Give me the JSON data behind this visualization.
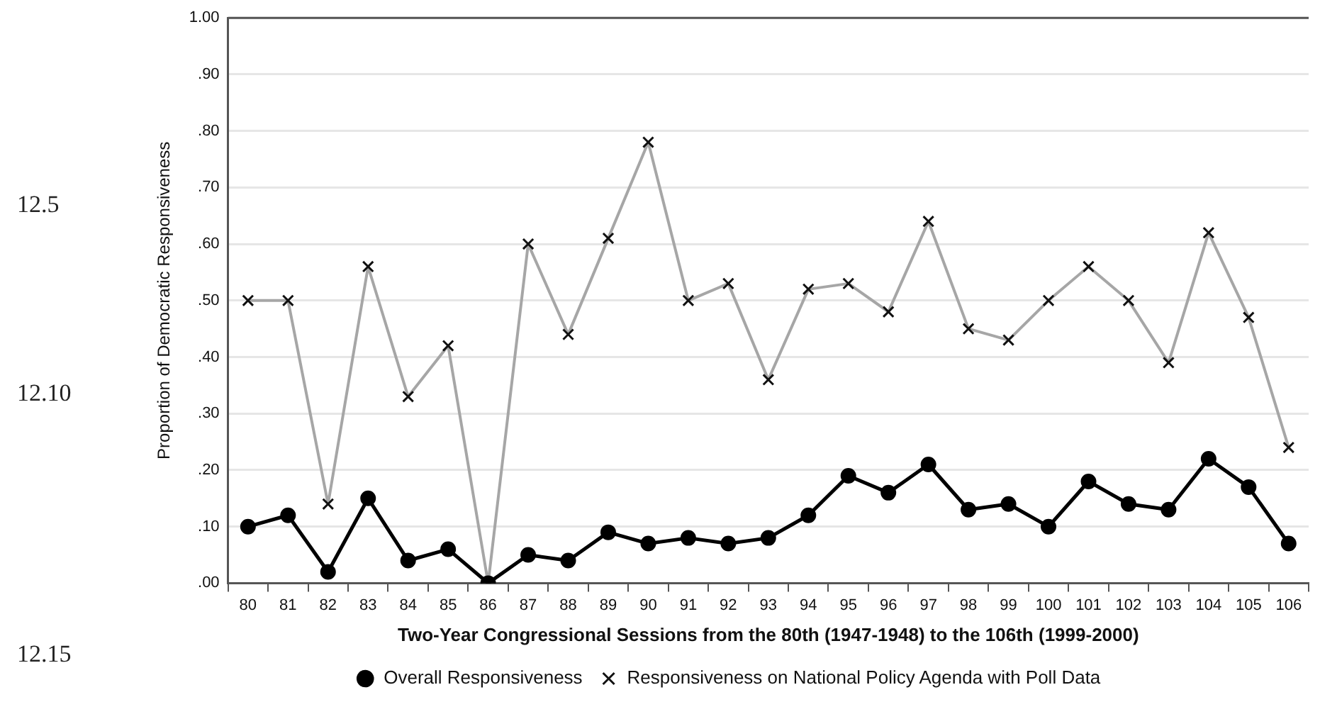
{
  "chart_data": {
    "type": "line",
    "xlabel": "Two-Year Congressional Sessions from the 80th (1947-1948) to the 106th (1999-2000)",
    "ylabel": "Proportion of Democratic Responsiveness",
    "categories": [
      "80",
      "81",
      "82",
      "83",
      "84",
      "85",
      "86",
      "87",
      "88",
      "89",
      "90",
      "91",
      "92",
      "93",
      "94",
      "95",
      "96",
      "97",
      "98",
      "99",
      "100",
      "101",
      "102",
      "103",
      "104",
      "105",
      "106"
    ],
    "series": [
      {
        "name": "Overall Responsiveness",
        "color": "#000000",
        "marker": "circle",
        "values": [
          0.1,
          0.12,
          0.02,
          0.15,
          0.04,
          0.06,
          0.0,
          0.05,
          0.04,
          0.09,
          0.07,
          0.08,
          0.07,
          0.08,
          0.12,
          0.19,
          0.16,
          0.21,
          0.13,
          0.14,
          0.1,
          0.18,
          0.14,
          0.13,
          0.22,
          0.17,
          0.07
        ]
      },
      {
        "name": "Responsiveness on National Policy Agenda with Poll Data",
        "color": "#a6a6a6",
        "marker": "cross",
        "values": [
          0.5,
          0.5,
          0.14,
          0.56,
          0.33,
          0.42,
          0.0,
          0.6,
          0.44,
          0.61,
          0.78,
          0.5,
          0.53,
          0.36,
          0.52,
          0.53,
          0.48,
          0.64,
          0.45,
          0.43,
          0.5,
          0.56,
          0.5,
          0.39,
          0.62,
          0.47,
          0.24
        ]
      }
    ],
    "ylim": [
      0,
      1
    ],
    "yticks": [
      {
        "value": 0,
        "label": ".00"
      },
      {
        "value": 0.1,
        "label": ".10"
      },
      {
        "value": 0.2,
        "label": ".20"
      },
      {
        "value": 0.3,
        "label": ".30"
      },
      {
        "value": 0.4,
        "label": ".40"
      },
      {
        "value": 0.5,
        "label": ".50"
      },
      {
        "value": 0.6,
        "label": ".60"
      },
      {
        "value": 0.7,
        "label": ".70"
      },
      {
        "value": 0.8,
        "label": ".80"
      },
      {
        "value": 0.9,
        "label": ".90"
      },
      {
        "value": 1,
        "label": "1.00"
      }
    ],
    "grid": "y",
    "legend": "bottom",
    "line_style": "solid",
    "annotations": [
      "12.5",
      "12.10",
      "12.15"
    ]
  }
}
